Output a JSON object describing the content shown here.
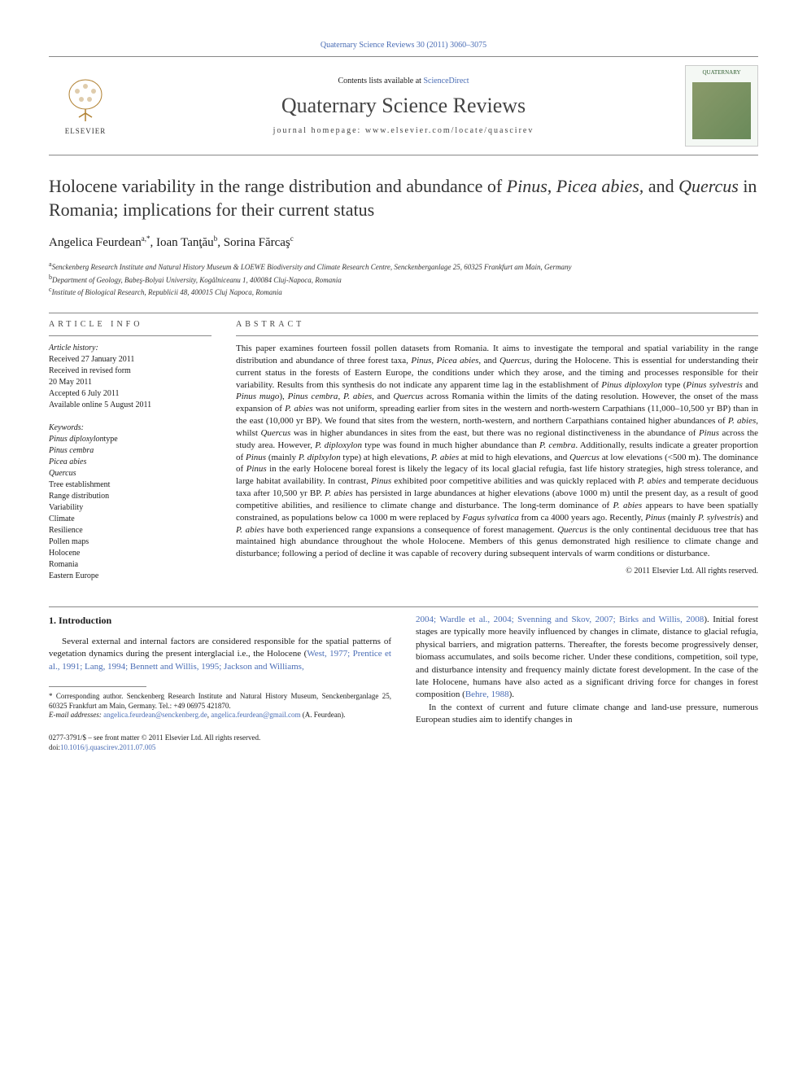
{
  "top_citation": "Quaternary Science Reviews 30 (2011) 3060–3075",
  "header": {
    "contents_prefix": "Contents lists available at ",
    "contents_link": "ScienceDirect",
    "journal": "Quaternary Science Reviews",
    "homepage_label": "journal homepage: ",
    "homepage_url": "www.elsevier.com/locate/quascirev",
    "publisher": "ELSEVIER",
    "thumb_label": "QUATERNARY"
  },
  "title_plain": "Holocene variability in the range distribution and abundance of ",
  "title_ital_1": "Pinus",
  "title_mid_1": ", ",
  "title_ital_2": "Picea abies,",
  "title_mid_2": " and ",
  "title_ital_3": "Quercus",
  "title_end": " in Romania; implications for their current status",
  "authors": {
    "a1_name": "Angelica Feurdean",
    "a1_sup": "a,*",
    "a2_name": "Ioan Tanţău",
    "a2_sup": "b",
    "a3_name": "Sorina Fărcaş",
    "a3_sup": "c"
  },
  "affiliations": {
    "a": "Senckenberg Research Institute and Natural History Museum & LOEWE Biodiversity and Climate Research Centre, Senckenberganlage 25, 60325 Frankfurt am Main, Germany",
    "b": "Department of Geology, Babeş-Bolyai University, Kogălniceanu 1, 400084 Cluj-Napoca, Romania",
    "c": "Institute of Biological Research, Republicii 48, 400015 Cluj Napoca, Romania"
  },
  "info": {
    "heading": "article info",
    "history_title": "Article history:",
    "received": "Received 27 January 2011",
    "revised": "Received in revised form",
    "revised_date": "20 May 2011",
    "accepted": "Accepted 6 July 2011",
    "online": "Available online 5 August 2011",
    "keywords_title": "Keywords:",
    "kw": [
      {
        "text": "Pinus diploxylon",
        "ital": true,
        "suffix": "type"
      },
      {
        "text": "Pinus cembra",
        "ital": true
      },
      {
        "text": "Picea abies",
        "ital": true
      },
      {
        "text": "Quercus",
        "ital": true
      },
      {
        "text": "Tree establishment"
      },
      {
        "text": "Range distribution"
      },
      {
        "text": "Variability"
      },
      {
        "text": "Climate"
      },
      {
        "text": "Resilience"
      },
      {
        "text": "Pollen maps"
      },
      {
        "text": "Holocene"
      },
      {
        "text": "Romania"
      },
      {
        "text": "Eastern Europe"
      }
    ]
  },
  "abstract": {
    "heading": "abstract",
    "text_parts": [
      {
        "t": "This paper examines fourteen fossil pollen datasets from Romania. It aims to investigate the temporal and spatial variability in the range distribution and abundance of three forest taxa, "
      },
      {
        "t": "Pinus",
        "i": true
      },
      {
        "t": ", "
      },
      {
        "t": "Picea abies",
        "i": true
      },
      {
        "t": ", and "
      },
      {
        "t": "Quercus",
        "i": true
      },
      {
        "t": ", during the Holocene. This is essential for understanding their current status in the forests of Eastern Europe, the conditions under which they arose, and the timing and processes responsible for their variability. Results from this synthesis do not indicate any apparent time lag in the establishment of "
      },
      {
        "t": "Pinus diploxylon",
        "i": true
      },
      {
        "t": " type ("
      },
      {
        "t": "Pinus sylvestris",
        "i": true
      },
      {
        "t": " and "
      },
      {
        "t": "Pinus mugo",
        "i": true
      },
      {
        "t": "), "
      },
      {
        "t": "Pinus cembra",
        "i": true
      },
      {
        "t": ", "
      },
      {
        "t": "P. abies",
        "i": true
      },
      {
        "t": ", and "
      },
      {
        "t": "Quercus",
        "i": true
      },
      {
        "t": " across Romania within the limits of the dating resolution. However, the onset of the mass expansion of "
      },
      {
        "t": "P. abies",
        "i": true
      },
      {
        "t": " was not uniform, spreading earlier from sites in the western and north-western Carpathians (11,000–10,500 yr BP) than in the east (10,000 yr BP). We found that sites from the western, north-western, and northern Carpathians contained higher abundances of "
      },
      {
        "t": "P. abies",
        "i": true
      },
      {
        "t": ", whilst "
      },
      {
        "t": "Quercus",
        "i": true
      },
      {
        "t": " was in higher abundances in sites from the east, but there was no regional distinctiveness in the abundance of "
      },
      {
        "t": "Pinus",
        "i": true
      },
      {
        "t": " across the study area. However, "
      },
      {
        "t": "P. diploxylon",
        "i": true
      },
      {
        "t": " type was found in much higher abundance than "
      },
      {
        "t": "P. cembra",
        "i": true
      },
      {
        "t": ". Additionally, results indicate a greater proportion of "
      },
      {
        "t": "Pinus",
        "i": true
      },
      {
        "t": " (mainly "
      },
      {
        "t": "P. diplxylon",
        "i": true
      },
      {
        "t": " type) at high elevations, "
      },
      {
        "t": "P. abies",
        "i": true
      },
      {
        "t": " at mid to high elevations, and "
      },
      {
        "t": "Quercus",
        "i": true
      },
      {
        "t": " at low elevations (<500 m). The dominance of "
      },
      {
        "t": "Pinus",
        "i": true
      },
      {
        "t": " in the early Holocene boreal forest is likely the legacy of its local glacial refugia, fast life history strategies, high stress tolerance, and large habitat availability. In contrast, "
      },
      {
        "t": "Pinus",
        "i": true
      },
      {
        "t": " exhibited poor competitive abilities and was quickly replaced with "
      },
      {
        "t": "P. abies",
        "i": true
      },
      {
        "t": " and temperate deciduous taxa after 10,500 yr BP. "
      },
      {
        "t": "P. abies",
        "i": true
      },
      {
        "t": " has persisted in large abundances at higher elevations (above 1000 m) until the present day, as a result of good competitive abilities, and resilience to climate change and disturbance. The long-term dominance of "
      },
      {
        "t": "P. abies",
        "i": true
      },
      {
        "t": " appears to have been spatially constrained, as populations below ca 1000 m were replaced by "
      },
      {
        "t": "Fagus sylvatica",
        "i": true
      },
      {
        "t": " from ca 4000 years ago. Recently, "
      },
      {
        "t": "Pinus",
        "i": true
      },
      {
        "t": " (mainly "
      },
      {
        "t": "P. sylvestris",
        "i": true
      },
      {
        "t": ") and "
      },
      {
        "t": "P. abies",
        "i": true
      },
      {
        "t": " have both experienced range expansions a consequence of forest management. "
      },
      {
        "t": "Quercus",
        "i": true
      },
      {
        "t": " is the only continental deciduous tree that has maintained high abundance throughout the whole Holocene. Members of this genus demonstrated high resilience to climate change and disturbance; following a period of decline it was capable of recovery during subsequent intervals of warm conditions or disturbance."
      }
    ],
    "copyright": "© 2011 Elsevier Ltd. All rights reserved."
  },
  "intro": {
    "heading": "1. Introduction",
    "col1_text": "Several external and internal factors are considered responsible for the spatial patterns of vegetation dynamics during the present interglacial i.e., the Holocene (",
    "col1_ref": "West, 1977; Prentice et al., 1991; Lang, 1994; Bennett and Willis, 1995; Jackson and Williams,",
    "col2_ref": "2004; Wardle et al., 2004; Svenning and Skov, 2007; Birks and Willis, 2008",
    "col2_text_a": "). Initial forest stages are typically more heavily influenced by changes in climate, distance to glacial refugia, physical barriers, and migration patterns. Thereafter, the forests become progressively denser, biomass accumulates, and soils become richer. Under these conditions, competition, soil type, and disturbance intensity and frequency mainly dictate forest development. In the case of the late Holocene, humans have also acted as a significant driving force for changes in forest composition (",
    "col2_ref_b": "Behre, 1988",
    "col2_text_b": ").",
    "col2_p2": "In the context of current and future climate change and land-use pressure, numerous European studies aim to identify changes in"
  },
  "footnotes": {
    "corr_label": "* Corresponding author. Senckenberg Research Institute and Natural History Museum, Senckenberganlage 25, 60325 Frankfurt am Main, Germany. Tel.: +49 06975 421870.",
    "email_label": "E-mail addresses: ",
    "email1": "angelica.feurdean@senckenberg.de",
    "email_sep": ", ",
    "email2": "angelica.feurdean@gmail.com",
    "email_suffix": " (A. Feurdean)."
  },
  "bottom": {
    "issn": "0277-3791/$ – see front matter © 2011 Elsevier Ltd. All rights reserved.",
    "doi_label": "doi:",
    "doi": "10.1016/j.quascirev.2011.07.005"
  },
  "colors": {
    "link": "#4a6db5",
    "rule": "#888888",
    "text": "#1a1a1a"
  }
}
